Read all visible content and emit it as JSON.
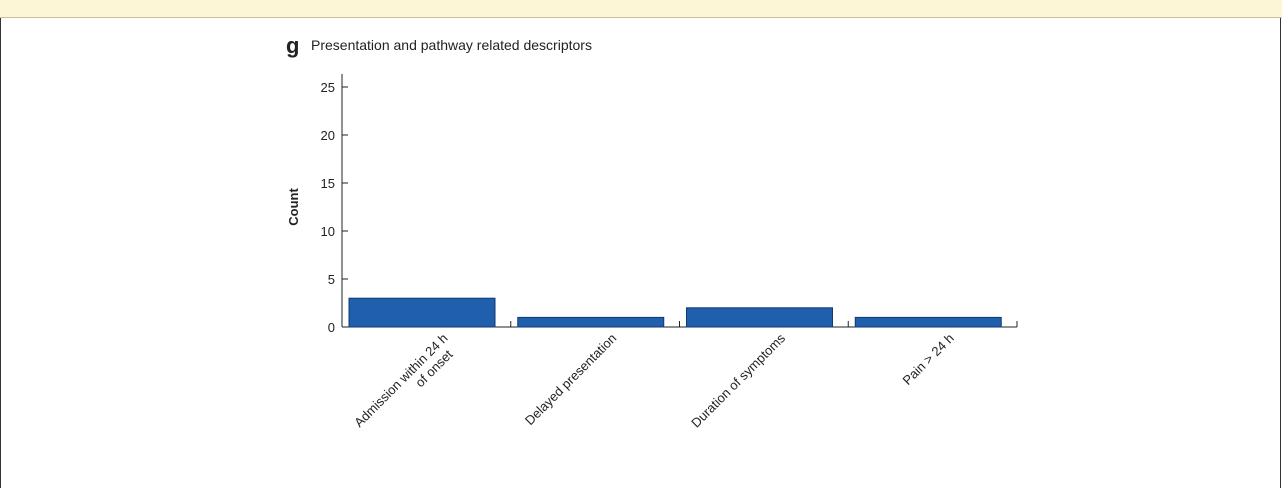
{
  "panel": {
    "letter": "g",
    "title": "Presentation and pathway related descriptors"
  },
  "chart_data": {
    "type": "bar",
    "title": "Presentation and pathway related descriptors",
    "ylabel": "Count",
    "xlabel": "",
    "ylim": [
      0,
      25
    ],
    "yticks": [
      0,
      5,
      10,
      15,
      20,
      25
    ],
    "categories": [
      [
        "Admission within 24 h",
        "of onset"
      ],
      [
        "Delayed presentation"
      ],
      [
        "Duration of symptoms"
      ],
      [
        "Pain > 24 h"
      ]
    ],
    "values": [
      3,
      1,
      2,
      1
    ],
    "bar_color": "#1f5fad",
    "grid": false,
    "legend": "none"
  }
}
